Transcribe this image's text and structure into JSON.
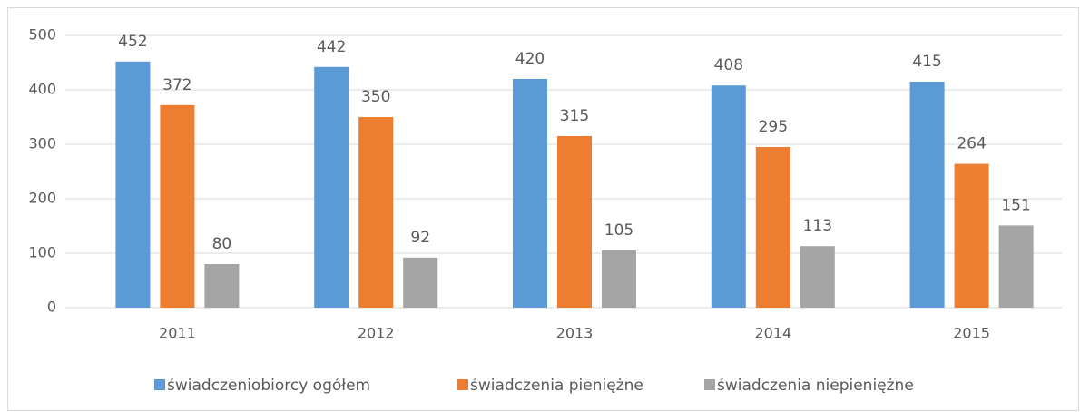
{
  "chart_data": {
    "type": "bar",
    "categories": [
      "2011",
      "2012",
      "2013",
      "2014",
      "2015"
    ],
    "series": [
      {
        "name": "świadczeniobiorcy ogółem",
        "color": "#5b9bd5",
        "values": [
          452,
          442,
          420,
          408,
          415
        ]
      },
      {
        "name": "świadczenia pieniężne",
        "color": "#ed7d31",
        "values": [
          372,
          350,
          315,
          295,
          264
        ]
      },
      {
        "name": "świadczenia niepieniężne",
        "color": "#a5a5a5",
        "values": [
          80,
          92,
          105,
          113,
          151
        ]
      }
    ],
    "ylim": [
      0,
      500
    ],
    "yticks": [
      0,
      100,
      200,
      300,
      400,
      500
    ],
    "grid": true,
    "legend": "bottom"
  }
}
